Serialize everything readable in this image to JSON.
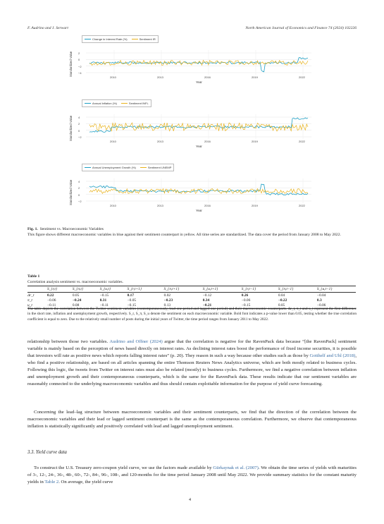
{
  "header": {
    "left": "F. Audrino and J. Serwart",
    "right": "North American Journal of Economics and Finance 74 (2024) 102226"
  },
  "figure": {
    "panels": [
      {
        "legend": [
          "Change in Interest Rate (%)",
          "Sentiment IR"
        ],
        "ylabel": "Standardized Value",
        "xlabel": "Year",
        "yticks": [
          "2",
          "0",
          "−2",
          "−4"
        ],
        "xticks": [
          "2010",
          "2013",
          "2016",
          "2019",
          "2022"
        ]
      },
      {
        "legend": [
          "Annual Inflation (%)",
          "Sentiment INFL"
        ],
        "ylabel": "Standardized Value",
        "xlabel": "Year",
        "yticks": [
          "4",
          "2",
          "0",
          "−2"
        ],
        "xticks": [
          "2010",
          "2013",
          "2016",
          "2019",
          "2022"
        ]
      },
      {
        "legend": [
          "Annual Unemployment Growth (%)",
          "Sentiment UNEMP"
        ],
        "ylabel": "Standardized Value",
        "xlabel": "Year",
        "yticks": [
          "4",
          "2",
          "0",
          "−2"
        ],
        "xticks": [
          "2010",
          "2013",
          "2016",
          "2019",
          "2022"
        ]
      }
    ],
    "colors": {
      "macro": "#1f9fc4",
      "sentiment": "#e8b21c"
    },
    "caption_label": "Fig. 1.",
    "caption_title": "Sentiment vs. Macroeconomic Variables",
    "caption_body": "This figure shows different macroeconomic variables in blue against their sentiment counterpart in yellow. All time series are standardized. The data cover the period from January 2008 to May 2022."
  },
  "table": {
    "label": "Table 1",
    "title": "Correlation analysis sentiment vs. macroeconomic variables.",
    "columns": [
      "",
      "S_{r,t}",
      "S_{π,t}",
      "S_{u,t}",
      "S_{r,t+1}",
      "S_{π,t+1}",
      "S_{u,t+1}",
      "S_{r,t−1}",
      "S_{π,t−1}",
      "S_{u,t−1}"
    ],
    "rows": [
      {
        "label": "Δr_t",
        "cells": [
          "0.22",
          "0.05",
          "−0.15",
          "0.17",
          "0.02",
          "−0.12",
          "0.26",
          "0.04",
          "−0.04"
        ],
        "bold": [
          0,
          3,
          6
        ]
      },
      {
        "label": "π_t",
        "cells": [
          "−0.06",
          "−0.24",
          "0.31",
          "−0.05",
          "−0.23",
          "0.34",
          "−0.06",
          "−0.22",
          "0.3"
        ],
        "bold": [
          1,
          2,
          4,
          5,
          7,
          8
        ]
      },
      {
        "label": "u_t",
        "cells": [
          "−0.11",
          "0.08",
          "−0.11",
          "−0.15",
          "0.13",
          "−0.21",
          "−0.15",
          "0.05",
          "−0.06"
        ],
        "bold": [
          5
        ]
      }
    ],
    "note": "The table depicts the correlation between the Twitter sentiment variables (contemporaneously, lead one period and lagged one period) and their macroeconomic counterparts. Δr_t, π_t and u_t represent the first difference in the short rate, inflation and unemployment growth, respectively. S_r, S_π, S_u denote the sentiment on each macroeconomic variable. Bold font indicates a p-value lower than 0.05, testing whether the true correlation coefficient is equal to zero. Due to the relatively small number of posts during the initial years of Twitter, the time period ranges from January 2011 to May 2022."
  },
  "body": {
    "p1_a": "relationship between those two variables.",
    "p1_link1": "Audrino and Offner",
    "p1_link1b": "(2024)",
    "p1_b": "argue that the correlation is negative for the RavenPack data because “[the RavenPack] sentiment variable is mainly based on the perception of news based directly on interest rates. As declining interest rates boost the performance of fixed income securities, it is possible that investors will rate as positive news which reports falling interest rates” (p. 20). They reason in such a way because other studies such as those by",
    "p1_link2": "Gotthelf and Uhl",
    "p1_link2b": "(2018)",
    "p1_c": ", who find a positive relationship, are based on all articles spanning the entire Thomson Reuters News Analytics universe, which are both mostly related to business cycles. Following this logic, the tweets from Twitter on interest rates must also be related (mostly) to business cycles. Furthermore, we find a negative correlation between inflation and unemployment growth and their contemporaneous counterparts, which is the same for the RavenPack data. These results indicate that our sentiment variables are reasonably connected to the underlying macroeconomic variables and thus should contain exploitable information for the purpose of yield curve forecasting.",
    "p2": "Concerning the lead–lag structure between macroeconomic variables and their sentiment counterparts, we find that the direction of the correlation between the macroeconomic variables and their lead or lagged sentiment counterpart is the same as the contemporaneous correlation. Furthermore, we observe that contemporaneous inflation is statistically significantly and positively correlated with lead and lagged unemployment sentiment.",
    "section": "3.3. Yield curve data",
    "p3_a": "To construct the U.S. Treasury zero-coupon yield curve, we use the factors made available by",
    "p3_link": "Gürkaynak et al.",
    "p3_link_b": "(2007)",
    "p3_b": ". We obtain the time series of yields with maturities of 3-, 12-, 24-, 36-, 48-, 60-, 72-, 84-, 96-, 108-, and 120-months for the time period January 2008 until May 2022. We provide summary statistics for the constant maturity yields in",
    "p3_link2": "Table 2",
    "p3_c": ". On average, the yield curve"
  },
  "page_number": "4"
}
